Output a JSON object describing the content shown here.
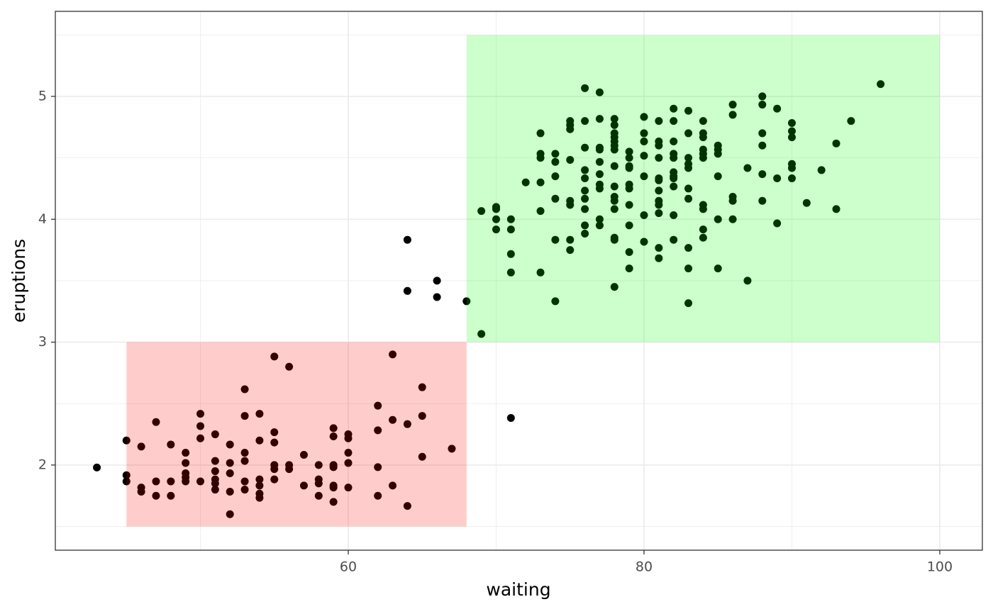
{
  "chart_data": {
    "type": "scatter",
    "x_label": "waiting",
    "y_label": "eruptions",
    "xlim": [
      40.19,
      102.88
    ],
    "ylim": [
      1.307,
      5.692
    ],
    "xticks": [
      60,
      80,
      100
    ],
    "yticks": [
      2,
      3,
      4,
      5
    ],
    "minor_xticks": [
      50,
      70,
      90
    ],
    "minor_yticks": [
      1.5,
      2.5,
      3.5,
      4.5,
      5.5
    ],
    "grid": true,
    "color": "#000000",
    "rects": [
      {
        "xmin": 45,
        "xmax": 68,
        "ymin": 1.5,
        "ymax": 3,
        "color": "#ff0000"
      },
      {
        "xmin": 68,
        "xmax": 100,
        "ymin": 3,
        "ymax": 5.5,
        "color": "#00ff00"
      }
    ],
    "points": [
      [
        43,
        1.98
      ],
      [
        45,
        2.2
      ],
      [
        45,
        1.917
      ],
      [
        45,
        1.867
      ],
      [
        46,
        2.15
      ],
      [
        46,
        1.817
      ],
      [
        46,
        1.783
      ],
      [
        47,
        2.35
      ],
      [
        47,
        1.867
      ],
      [
        47,
        1.75
      ],
      [
        48,
        2.167
      ],
      [
        48,
        1.867
      ],
      [
        48,
        1.75
      ],
      [
        49,
        2.1
      ],
      [
        49,
        2.017
      ],
      [
        49,
        1.933
      ],
      [
        49,
        1.9
      ],
      [
        49,
        1.867
      ],
      [
        50,
        2.417
      ],
      [
        50,
        2.317
      ],
      [
        50,
        2.217
      ],
      [
        50,
        1.867
      ],
      [
        51,
        2.25
      ],
      [
        51,
        2.033
      ],
      [
        51,
        1.95
      ],
      [
        51,
        1.883
      ],
      [
        51,
        1.85
      ],
      [
        51,
        1.8
      ],
      [
        52,
        2.167
      ],
      [
        52,
        2.017
      ],
      [
        52,
        1.933
      ],
      [
        52,
        1.783
      ],
      [
        52,
        1.6
      ],
      [
        53,
        2.617
      ],
      [
        53,
        2.4
      ],
      [
        53,
        2.1
      ],
      [
        53,
        2.033
      ],
      [
        53,
        1.867
      ],
      [
        53,
        1.8
      ],
      [
        54,
        2.417
      ],
      [
        54,
        2.2
      ],
      [
        54,
        1.883
      ],
      [
        54,
        1.833
      ],
      [
        54,
        1.767
      ],
      [
        54,
        1.733
      ],
      [
        55,
        2.883
      ],
      [
        55,
        2.267
      ],
      [
        55,
        2.183
      ],
      [
        55,
        2
      ],
      [
        55,
        1.967
      ],
      [
        55,
        1.883
      ],
      [
        56,
        2.8
      ],
      [
        56,
        2
      ],
      [
        56,
        1.967
      ],
      [
        57,
        2.083
      ],
      [
        57,
        1.833
      ],
      [
        58,
        2
      ],
      [
        58,
        1.883
      ],
      [
        58,
        1.85
      ],
      [
        58,
        1.75
      ],
      [
        59,
        2.3
      ],
      [
        59,
        2.233
      ],
      [
        59,
        2
      ],
      [
        59,
        1.983
      ],
      [
        59,
        1.833
      ],
      [
        59,
        1.817
      ],
      [
        59,
        1.7
      ],
      [
        60,
        2.25
      ],
      [
        60,
        2.217
      ],
      [
        60,
        2.1
      ],
      [
        60,
        2.017
      ],
      [
        60,
        1.817
      ],
      [
        62,
        2.483
      ],
      [
        62,
        2.283
      ],
      [
        62,
        1.983
      ],
      [
        62,
        1.75
      ],
      [
        63,
        2.9
      ],
      [
        63,
        2.367
      ],
      [
        63,
        1.833
      ],
      [
        64,
        3.833
      ],
      [
        64,
        3.417
      ],
      [
        64,
        2.333
      ],
      [
        64,
        1.667
      ],
      [
        65,
        2.633
      ],
      [
        65,
        2.4
      ],
      [
        65,
        2.067
      ],
      [
        66,
        3.5
      ],
      [
        66,
        3.367
      ],
      [
        67,
        2.133
      ],
      [
        68,
        3.333
      ],
      [
        69,
        4.067
      ],
      [
        69,
        3.067
      ],
      [
        70,
        4.1
      ],
      [
        70,
        4.083
      ],
      [
        70,
        4
      ],
      [
        70,
        3.917
      ],
      [
        71,
        4
      ],
      [
        71,
        3.917
      ],
      [
        71,
        3.717
      ],
      [
        71,
        3.567
      ],
      [
        71,
        2.383
      ],
      [
        72,
        4.3
      ],
      [
        73,
        4.7
      ],
      [
        73,
        4.533
      ],
      [
        73,
        4.5
      ],
      [
        73,
        4.3
      ],
      [
        73,
        4.067
      ],
      [
        73,
        3.567
      ],
      [
        74,
        4.533
      ],
      [
        74,
        4.467
      ],
      [
        74,
        4.35
      ],
      [
        74,
        4.167
      ],
      [
        74,
        3.833
      ],
      [
        74,
        3.333
      ],
      [
        75,
        4.8
      ],
      [
        75,
        4.767
      ],
      [
        75,
        4.733
      ],
      [
        75,
        4.483
      ],
      [
        75,
        4.15
      ],
      [
        75,
        4.117
      ],
      [
        75,
        3.833
      ],
      [
        75,
        3.75
      ],
      [
        76,
        5.067
      ],
      [
        76,
        4.8
      ],
      [
        76,
        4.583
      ],
      [
        76,
        4.4
      ],
      [
        76,
        4.333
      ],
      [
        76,
        4.233
      ],
      [
        76,
        4.167
      ],
      [
        76,
        4.083
      ],
      [
        76,
        3.95
      ],
      [
        76,
        3.883
      ],
      [
        77,
        5.033
      ],
      [
        77,
        4.817
      ],
      [
        77,
        4.583
      ],
      [
        77,
        4.567
      ],
      [
        77,
        4.467
      ],
      [
        77,
        4.367
      ],
      [
        77,
        4.283
      ],
      [
        77,
        4.25
      ],
      [
        77,
        4
      ],
      [
        77,
        3.95
      ],
      [
        78,
        4.817
      ],
      [
        78,
        4.767
      ],
      [
        78,
        4.7
      ],
      [
        78,
        4.667
      ],
      [
        78,
        4.633
      ],
      [
        78,
        4.6
      ],
      [
        78,
        4.567
      ],
      [
        78,
        4.433
      ],
      [
        78,
        4.267
      ],
      [
        78,
        4.183
      ],
      [
        78,
        4.15
      ],
      [
        78,
        4.083
      ],
      [
        78,
        3.85
      ],
      [
        78,
        3.833
      ],
      [
        78,
        3.45
      ],
      [
        79,
        4.55
      ],
      [
        79,
        4.5
      ],
      [
        79,
        4.433
      ],
      [
        79,
        4.417
      ],
      [
        79,
        4.283
      ],
      [
        79,
        4.25
      ],
      [
        79,
        4.117
      ],
      [
        79,
        3.95
      ],
      [
        79,
        3.733
      ],
      [
        79,
        3.6
      ],
      [
        80,
        4.833
      ],
      [
        80,
        4.7
      ],
      [
        80,
        4.633
      ],
      [
        80,
        4.517
      ],
      [
        80,
        4.35
      ],
      [
        80,
        4.033
      ],
      [
        80,
        3.817
      ],
      [
        81,
        4.8
      ],
      [
        81,
        4.633
      ],
      [
        81,
        4.6
      ],
      [
        81,
        4.5
      ],
      [
        81,
        4.333
      ],
      [
        81,
        4.317
      ],
      [
        81,
        4.233
      ],
      [
        81,
        4.15
      ],
      [
        81,
        4.117
      ],
      [
        81,
        4.05
      ],
      [
        81,
        3.767
      ],
      [
        81,
        3.683
      ],
      [
        82,
        4.9
      ],
      [
        82,
        4.8
      ],
      [
        82,
        4.633
      ],
      [
        82,
        4.533
      ],
      [
        82,
        4.5
      ],
      [
        82,
        4.383
      ],
      [
        82,
        4.35
      ],
      [
        82,
        4.333
      ],
      [
        82,
        4.267
      ],
      [
        82,
        4.033
      ],
      [
        82,
        3.833
      ],
      [
        83,
        4.883
      ],
      [
        83,
        4.7
      ],
      [
        83,
        4.5
      ],
      [
        83,
        4.45
      ],
      [
        83,
        4.417
      ],
      [
        83,
        4.25
      ],
      [
        83,
        4.167
      ],
      [
        83,
        3.767
      ],
      [
        83,
        3.6
      ],
      [
        83,
        3.317
      ],
      [
        84,
        4.8
      ],
      [
        84,
        4.7
      ],
      [
        84,
        4.667
      ],
      [
        84,
        4.567
      ],
      [
        84,
        4.533
      ],
      [
        84,
        4.5
      ],
      [
        84,
        4.117
      ],
      [
        84,
        4.083
      ],
      [
        84,
        3.917
      ],
      [
        84,
        3.85
      ],
      [
        85,
        4.6
      ],
      [
        85,
        4.567
      ],
      [
        85,
        4.533
      ],
      [
        85,
        4.35
      ],
      [
        85,
        4
      ],
      [
        85,
        3.6
      ],
      [
        86,
        4.933
      ],
      [
        86,
        4.85
      ],
      [
        86,
        4.183
      ],
      [
        86,
        4.15
      ],
      [
        86,
        4
      ],
      [
        87,
        4.417
      ],
      [
        87,
        3.5
      ],
      [
        88,
        5
      ],
      [
        88,
        4.933
      ],
      [
        88,
        4.7
      ],
      [
        88,
        4.6
      ],
      [
        88,
        4.367
      ],
      [
        88,
        4.15
      ],
      [
        89,
        4.9
      ],
      [
        89,
        4.333
      ],
      [
        89,
        3.967
      ],
      [
        90,
        4.783
      ],
      [
        90,
        4.717
      ],
      [
        90,
        4.667
      ],
      [
        90,
        4.45
      ],
      [
        90,
        4.417
      ],
      [
        90,
        4.333
      ],
      [
        91,
        4.133
      ],
      [
        92,
        4.4
      ],
      [
        93,
        4.617
      ],
      [
        93,
        4.083
      ],
      [
        94,
        4.8
      ],
      [
        96,
        5.1
      ]
    ]
  }
}
